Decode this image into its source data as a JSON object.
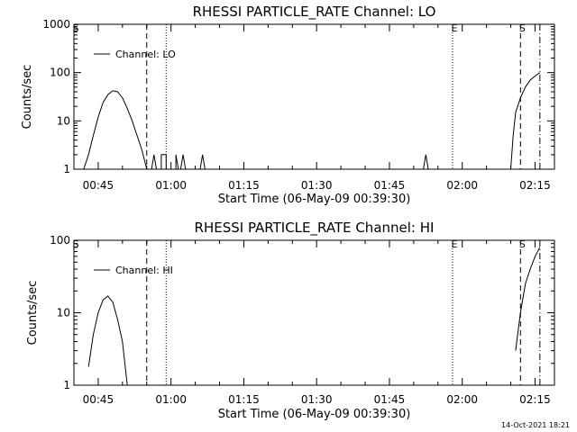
{
  "chart_data": [
    {
      "type": "line",
      "title": "RHESSI PARTICLE_RATE Channel: LO",
      "xlabel": "Start Time (06-May-09 00:39:30)",
      "ylabel": "Counts/sec",
      "yscale": "log",
      "xlim": [
        "00:40",
        "02:19"
      ],
      "ylim": [
        1,
        1000
      ],
      "xticks": [
        "00:45",
        "01:00",
        "01:15",
        "01:30",
        "01:45",
        "02:00",
        "02:15"
      ],
      "yticks": [
        "1",
        "10",
        "100",
        "1000"
      ],
      "legend": "Channel: LO",
      "legend_position": "top-left",
      "grid": false,
      "markers": [
        {
          "time": "00:40",
          "label": "S",
          "style": "none"
        },
        {
          "time": "00:55",
          "label": "",
          "style": "dashed"
        },
        {
          "time": "00:59",
          "label": "",
          "style": "dotted"
        },
        {
          "time": "01:58",
          "label": "E",
          "style": "dotted"
        },
        {
          "time": "02:12",
          "label": "S",
          "style": "dashed"
        },
        {
          "time": "02:16",
          "label": "",
          "style": "dashdot"
        }
      ],
      "series": [
        {
          "name": "Channel: LO",
          "points": [
            [
              "00:42",
              1
            ],
            [
              "00:43",
              2
            ],
            [
              "00:44",
              5
            ],
            [
              "00:45",
              12
            ],
            [
              "00:46",
              24
            ],
            [
              "00:47",
              35
            ],
            [
              "00:48",
              42
            ],
            [
              "00:49",
              40
            ],
            [
              "00:50",
              30
            ],
            [
              "00:51",
              18
            ],
            [
              "00:52",
              10
            ],
            [
              "00:53",
              5
            ],
            [
              "00:54",
              2.5
            ],
            [
              "00:55",
              1
            ],
            [
              "00:56",
              1
            ],
            [
              "00:56.5",
              2
            ],
            [
              "00:57",
              1
            ],
            [
              "00:58",
              1
            ],
            [
              "00:58",
              2
            ],
            [
              "00:59",
              2
            ],
            [
              "00:59",
              1
            ],
            [
              "01:00",
              1
            ],
            [
              "01:01",
              1
            ],
            [
              "01:01",
              2
            ],
            [
              "01:01.5",
              1
            ],
            [
              "01:02",
              1
            ],
            [
              "01:02.5",
              2
            ],
            [
              "01:03",
              1
            ],
            [
              "01:06",
              1
            ],
            [
              "01:06.5",
              2
            ],
            [
              "01:07",
              1
            ],
            [
              "01:52",
              1
            ],
            [
              "01:52.5",
              2
            ],
            [
              "01:53",
              1
            ],
            [
              "02:10",
              1
            ],
            [
              "02:10.5",
              5
            ],
            [
              "02:11",
              15
            ],
            [
              "02:12",
              30
            ],
            [
              "02:13",
              50
            ],
            [
              "02:14",
              70
            ],
            [
              "02:15",
              85
            ],
            [
              "02:16",
              100
            ]
          ]
        }
      ]
    },
    {
      "type": "line",
      "title": "RHESSI PARTICLE_RATE Channel: HI",
      "xlabel": "Start Time (06-May-09 00:39:30)",
      "ylabel": "Counts/sec",
      "yscale": "log",
      "xlim": [
        "00:40",
        "02:19"
      ],
      "ylim": [
        1,
        100
      ],
      "xticks": [
        "00:45",
        "01:00",
        "01:15",
        "01:30",
        "01:45",
        "02:00",
        "02:15"
      ],
      "yticks": [
        "1",
        "10",
        "100"
      ],
      "legend": "Channel: HI",
      "legend_position": "top-left",
      "grid": false,
      "markers": [
        {
          "time": "00:40",
          "label": "S",
          "style": "none"
        },
        {
          "time": "00:55",
          "label": "",
          "style": "dashed"
        },
        {
          "time": "00:59",
          "label": "",
          "style": "dotted"
        },
        {
          "time": "01:58",
          "label": "E",
          "style": "dotted"
        },
        {
          "time": "02:12",
          "label": "S",
          "style": "dashed"
        },
        {
          "time": "02:16",
          "label": "",
          "style": "dashdot"
        }
      ],
      "series": [
        {
          "name": "Channel: HI",
          "points": [
            [
              "00:43",
              1.8
            ],
            [
              "00:44",
              5
            ],
            [
              "00:45",
              10
            ],
            [
              "00:46",
              15
            ],
            [
              "00:47",
              17
            ],
            [
              "00:48",
              14
            ],
            [
              "00:49",
              8
            ],
            [
              "00:50",
              4
            ],
            [
              "00:51",
              1
            ],
            [
              "02:11",
              3
            ],
            [
              "02:12",
              10
            ],
            [
              "02:13",
              25
            ],
            [
              "02:14",
              40
            ],
            [
              "02:15",
              60
            ],
            [
              "02:16",
              80
            ]
          ]
        }
      ]
    }
  ],
  "footer": {
    "timestamp": "14-Oct-2021 18:21"
  }
}
